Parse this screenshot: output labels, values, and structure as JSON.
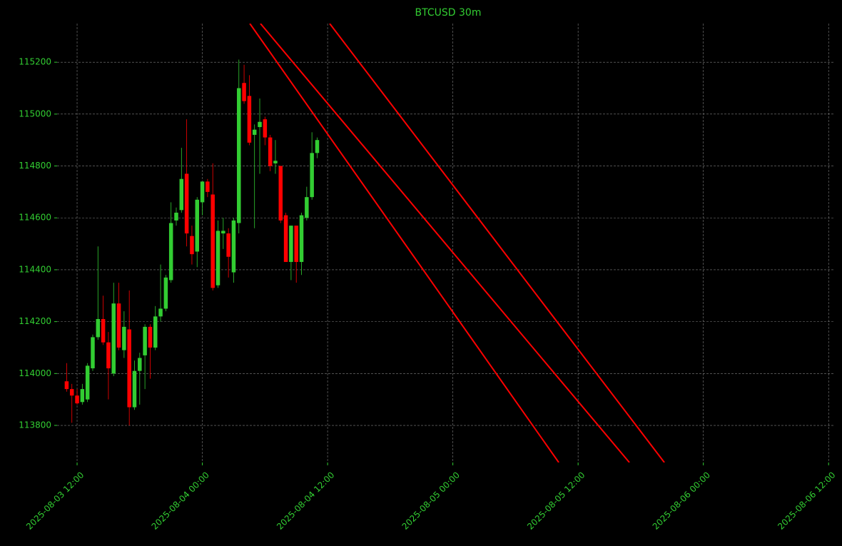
{
  "chart_data": {
    "type": "candlestick",
    "title": "BTCUSD 30m",
    "x": [
      "2025-08-03 11:00",
      "2025-08-03 11:30",
      "2025-08-03 12:00",
      "2025-08-03 12:30",
      "2025-08-03 13:00",
      "2025-08-03 13:30",
      "2025-08-03 14:00",
      "2025-08-03 14:30",
      "2025-08-03 15:00",
      "2025-08-03 15:30",
      "2025-08-03 16:00",
      "2025-08-03 16:30",
      "2025-08-03 17:00",
      "2025-08-03 17:30",
      "2025-08-03 18:00",
      "2025-08-03 18:30",
      "2025-08-03 19:00",
      "2025-08-03 19:30",
      "2025-08-03 20:00",
      "2025-08-03 20:30",
      "2025-08-03 21:00",
      "2025-08-03 21:30",
      "2025-08-03 22:00",
      "2025-08-03 22:30",
      "2025-08-03 23:00",
      "2025-08-03 23:30",
      "2025-08-04 00:00",
      "2025-08-04 00:30",
      "2025-08-04 01:00",
      "2025-08-04 01:30",
      "2025-08-04 02:00",
      "2025-08-04 02:30",
      "2025-08-04 03:00",
      "2025-08-04 03:30",
      "2025-08-04 04:00",
      "2025-08-04 04:30",
      "2025-08-04 05:00",
      "2025-08-04 05:30",
      "2025-08-04 06:00",
      "2025-08-04 06:30",
      "2025-08-04 07:00",
      "2025-08-04 07:30",
      "2025-08-04 08:00",
      "2025-08-04 08:30",
      "2025-08-04 09:00",
      "2025-08-04 09:30",
      "2025-08-04 10:00",
      "2025-08-04 10:30",
      "2025-08-04 11:00"
    ],
    "open": [
      113970,
      113940,
      113915,
      113890,
      113900,
      114020,
      114140,
      114210,
      114120,
      114000,
      114270,
      114090,
      114170,
      113870,
      114010,
      114070,
      114180,
      114100,
      114220,
      114250,
      114360,
      114590,
      114630,
      114770,
      114530,
      114470,
      114660,
      114740,
      114690,
      114340,
      114540,
      114540,
      114390,
      114580,
      115120,
      115070,
      114920,
      114950,
      114980,
      114910,
      114810,
      114800,
      114610,
      114430,
      114570,
      114430,
      114600,
      114680,
      114850
    ],
    "high": [
      114040,
      113960,
      113940,
      113960,
      114040,
      114150,
      114490,
      114300,
      114160,
      114350,
      114350,
      114240,
      114320,
      114050,
      114080,
      114190,
      114190,
      114260,
      114420,
      114380,
      114660,
      114640,
      114870,
      114980,
      114570,
      114680,
      114740,
      114750,
      114810,
      114590,
      114600,
      114560,
      114600,
      115210,
      115190,
      115150,
      114960,
      115060,
      114990,
      114920,
      114900,
      114800,
      114620,
      114570,
      114570,
      114620,
      114720,
      114930,
      114910
    ],
    "low": [
      113930,
      113810,
      113880,
      113880,
      113890,
      114010,
      114130,
      114110,
      113900,
      113990,
      114090,
      114060,
      113800,
      113860,
      113880,
      113940,
      113980,
      114090,
      114200,
      114240,
      114350,
      114570,
      114620,
      114490,
      114420,
      114410,
      114610,
      114680,
      114320,
      114330,
      114480,
      114370,
      114350,
      114540,
      115040,
      114880,
      114560,
      114770,
      114880,
      114780,
      114770,
      114580,
      114430,
      114360,
      114350,
      114380,
      114590,
      114670,
      114830
    ],
    "close": [
      113940,
      113915,
      113885,
      113940,
      114030,
      114140,
      114210,
      114120,
      114020,
      114270,
      114100,
      114180,
      113870,
      114010,
      114060,
      114180,
      114100,
      114220,
      114250,
      114370,
      114580,
      114620,
      114750,
      114540,
      114460,
      114670,
      114740,
      114700,
      114330,
      114550,
      114550,
      114450,
      114590,
      115100,
      115050,
      114890,
      114940,
      114970,
      114910,
      114800,
      114820,
      114590,
      114430,
      114570,
      114430,
      114610,
      114680,
      114850,
      114900
    ],
    "up_color": "#32cd32",
    "down_color": "#ff0000",
    "lines": [
      {
        "x": [
          "2025-08-04 04:33",
          "2025-08-05 10:09"
        ],
        "values": [
          115349,
          113657
        ],
        "color": "#ff0000"
      },
      {
        "x": [
          "2025-08-04 05:34",
          "2025-08-05 16:55"
        ],
        "values": [
          115349,
          113657
        ],
        "color": "#ff0000"
      },
      {
        "x": [
          "2025-08-04 12:12",
          "2025-08-05 20:16"
        ],
        "values": [
          115349,
          113657
        ],
        "color": "#ff0000"
      }
    ],
    "xlim": [
      "2025-08-03 10:05",
      "2025-08-06 12:36"
    ],
    "xticks": [
      "2025-08-03 12:00",
      "2025-08-04 00:00",
      "2025-08-04 12:00",
      "2025-08-05 00:00",
      "2025-08-05 12:00",
      "2025-08-06 00:00",
      "2025-08-06 12:00"
    ],
    "ylim": [
      113657,
      115349
    ],
    "yticks": [
      113800,
      114000,
      114200,
      114400,
      114600,
      114800,
      115000,
      115200
    ],
    "grid": true
  }
}
